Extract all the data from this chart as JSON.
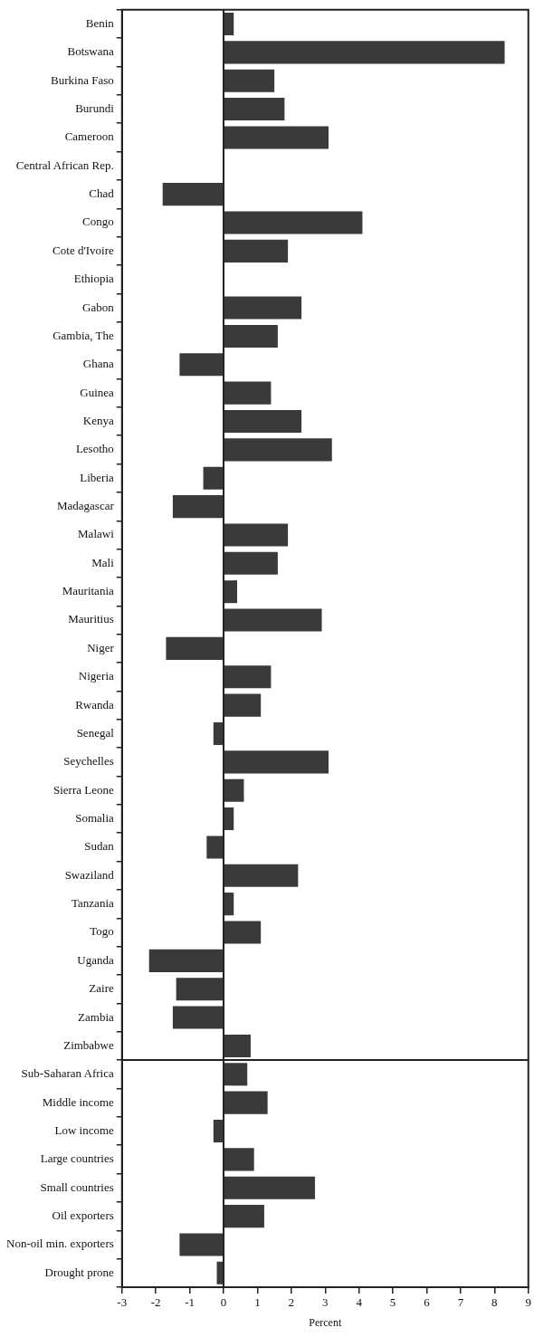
{
  "chart_data": {
    "type": "bar",
    "orientation": "horizontal",
    "xlabel": "Percent",
    "categories": [
      "Benin",
      "Botswana",
      "Burkina Faso",
      "Burundi",
      "Cameroon",
      "Central African Rep.",
      "Chad",
      "Congo",
      "Cote d'Ivoire",
      "Ethiopia",
      "Gabon",
      "Gambia, The",
      "Ghana",
      "Guinea",
      "Kenya",
      "Lesotho",
      "Liberia",
      "Madagascar",
      "Malawi",
      "Mali",
      "Mauritania",
      "Mauritius",
      "Niger",
      "Nigeria",
      "Rwanda",
      "Senegal",
      "Seychelles",
      "Sierra Leone",
      "Somalia",
      "Sudan",
      "Swaziland",
      "Tanzania",
      "Togo",
      "Uganda",
      "Zaire",
      "Zambia",
      "Zimbabwe",
      "Sub-Saharan Africa",
      "Middle income",
      "Low income",
      "Large countries",
      "Small countries",
      "Oil exporters",
      "Non-oil min. exporters",
      "Drought prone"
    ],
    "values": [
      0.3,
      8.3,
      1.5,
      1.8,
      3.1,
      0,
      -1.8,
      4.1,
      1.9,
      0,
      2.3,
      1.6,
      -1.3,
      1.4,
      2.3,
      3.2,
      -0.6,
      -1.5,
      1.9,
      1.6,
      0.4,
      2.9,
      -1.7,
      1.4,
      1.1,
      -0.3,
      3.1,
      0.6,
      0.3,
      -0.5,
      2.2,
      0.3,
      1.1,
      -2.2,
      -1.4,
      -1.5,
      0.8,
      0.7,
      1.3,
      -0.3,
      0.9,
      2.7,
      1.2,
      -1.3,
      -0.2
    ],
    "color": "#3a3a3a",
    "xlim": [
      -3,
      9
    ],
    "xticks": [
      -3,
      -2,
      -1,
      0,
      1,
      2,
      3,
      4,
      5,
      6,
      7,
      8,
      9
    ],
    "grid": false,
    "legend": false,
    "ref_lines": [
      {
        "axis": "x",
        "value": 0,
        "color": "#222222"
      }
    ]
  }
}
